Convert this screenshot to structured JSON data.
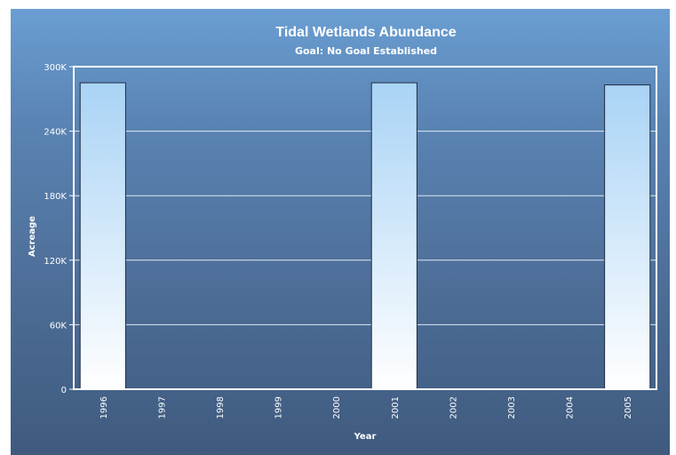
{
  "chart_data": {
    "type": "bar",
    "title": "Tidal Wetlands Abundance",
    "subtitle": "Goal: No Goal Established",
    "xlabel": "Year",
    "ylabel": "Acreage",
    "categories": [
      "1996",
      "1997",
      "1998",
      "1999",
      "2000",
      "2001",
      "2002",
      "2003",
      "2004",
      "2005"
    ],
    "values": [
      285000,
      0,
      0,
      0,
      0,
      285000,
      0,
      0,
      0,
      283000
    ],
    "ylim": [
      0,
      300000
    ],
    "yticks": [
      0,
      60000,
      120000,
      180000,
      240000,
      300000
    ],
    "ytick_labels": [
      "0",
      "60K",
      "120K",
      "180K",
      "240K",
      "300K"
    ],
    "grid": true,
    "legend": "none",
    "colors": {
      "bar_top": "#a9d3f5",
      "bar_bottom": "#ffffff",
      "bar_stroke": "#1f2f44",
      "grid": "#dfe8f2",
      "axis": "#ffffff"
    }
  }
}
